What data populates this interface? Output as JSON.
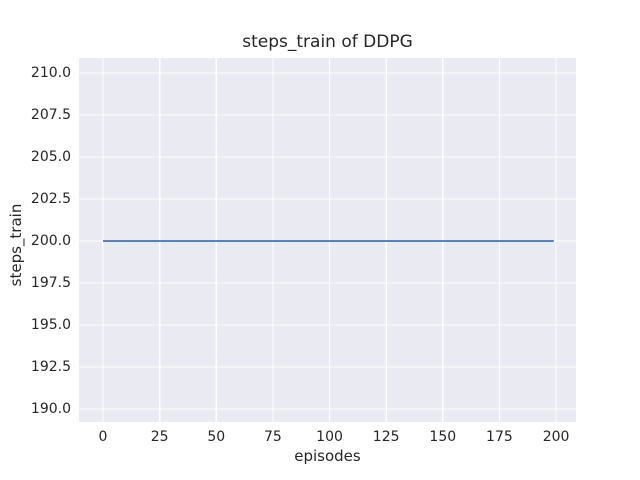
{
  "chart_data": {
    "type": "line",
    "title": "steps_train of DDPG",
    "xlabel": "episodes",
    "ylabel": "steps_train",
    "series": [
      {
        "name": "steps_train",
        "color": "#4c72b0",
        "points": [
          [
            0,
            200
          ],
          [
            199,
            200
          ]
        ],
        "note": "constant value 200 for every episode from 0 to 199"
      }
    ],
    "x_ticks": [
      0,
      25,
      50,
      75,
      100,
      125,
      150,
      175,
      200
    ],
    "x_tick_labels": [
      "0",
      "25",
      "50",
      "75",
      "100",
      "125",
      "150",
      "175",
      "200"
    ],
    "y_ticks": [
      190.0,
      192.5,
      195.0,
      197.5,
      200.0,
      202.5,
      205.0,
      207.5,
      210.0
    ],
    "y_tick_labels": [
      "190.0",
      "192.5",
      "195.0",
      "197.5",
      "200.0",
      "202.5",
      "205.0",
      "207.5",
      "210.0"
    ],
    "xlim": [
      -10.6,
      208.8
    ],
    "ylim": [
      189.23,
      210.89
    ],
    "grid": true,
    "legend": false,
    "colors": {
      "plot_background": "#eaeaf2",
      "grid": "#ffffff",
      "text": "#262626",
      "figure_background": "#ffffff"
    }
  }
}
